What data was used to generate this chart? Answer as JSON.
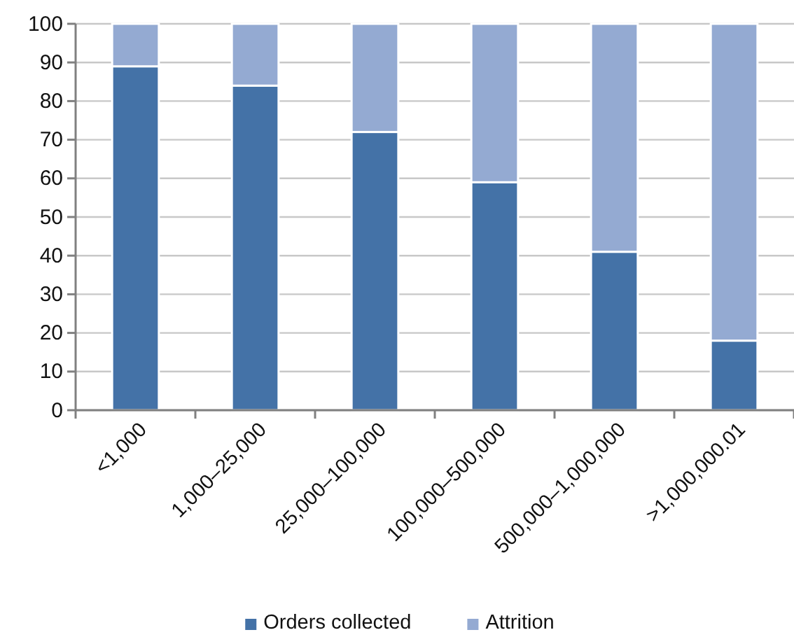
{
  "chart_data": {
    "type": "bar",
    "stacked": true,
    "categories": [
      "<1,000",
      "1,000–25,000",
      "25,000–100,000",
      "100,000–500,000",
      "500,000–1,000,000",
      ">1,000,000.01"
    ],
    "series": [
      {
        "name": "Orders collected",
        "color": "#4472a7",
        "values": [
          89,
          84,
          72,
          59,
          41,
          18
        ]
      },
      {
        "name": "Attrition",
        "color": "#94aad2",
        "values": [
          11,
          16,
          28,
          41,
          59,
          82
        ]
      }
    ],
    "ylim": [
      0,
      100
    ],
    "yticks": [
      0,
      10,
      20,
      30,
      40,
      50,
      60,
      70,
      80,
      90,
      100
    ],
    "grid": "y",
    "legend": "bottom"
  }
}
